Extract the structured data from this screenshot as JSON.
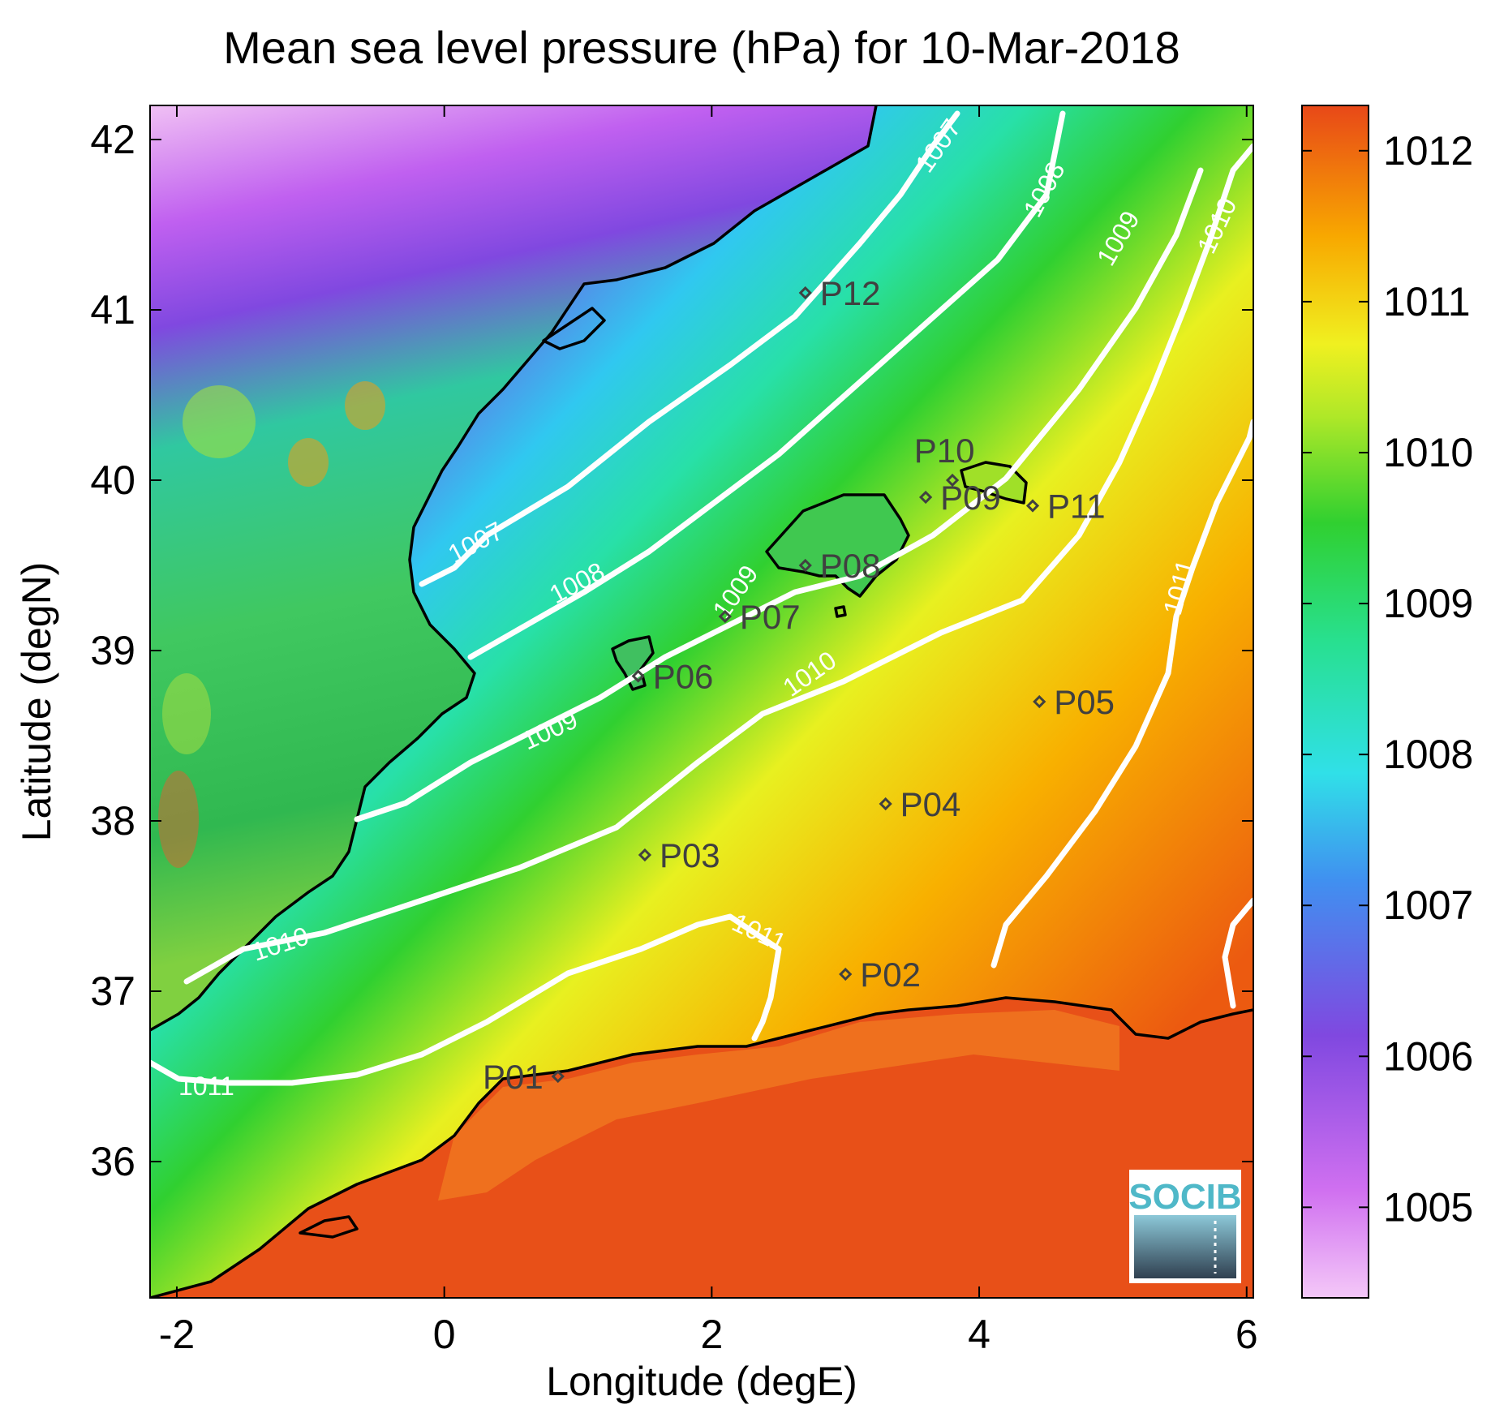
{
  "title": "Mean sea level pressure (hPa) for 10-Mar-2018",
  "xlabel": "Longitude (degE)",
  "ylabel": "Latitude (degN)",
  "logo_text": "SOCIB",
  "colors": {
    "c1004": "#f4c8f8",
    "c1005": "#d070f0",
    "c1006": "#8048e0",
    "c1007": "#30b0f0",
    "c1008": "#28e8b0",
    "c1009": "#30d030",
    "c1010": "#e8f020",
    "c1011": "#f8a800",
    "c1012": "#e84818"
  },
  "chart_data": {
    "type": "heatmap",
    "title": "Mean sea level pressure (hPa) for 10-Mar-2018",
    "xlabel": "Longitude (degE)",
    "ylabel": "Latitude (degN)",
    "xlim": [
      -2.2,
      6.05
    ],
    "ylim": [
      35.2,
      42.2
    ],
    "xticks": [
      -2,
      0,
      2,
      4,
      6
    ],
    "xtick_labels": [
      "-2",
      "0",
      "2",
      "4",
      "6"
    ],
    "yticks": [
      36,
      37,
      38,
      39,
      40,
      41,
      42
    ],
    "ytick_labels": [
      "36",
      "37",
      "38",
      "39",
      "40",
      "41",
      "42"
    ],
    "colorbar": {
      "label": "",
      "range": [
        1004.4,
        1012.3
      ],
      "ticks": [
        1005,
        1006,
        1007,
        1008,
        1009,
        1010,
        1011,
        1012
      ],
      "tick_labels": [
        "1005",
        "1006",
        "1007",
        "1008",
        "1009",
        "1010",
        "1011",
        "1012"
      ]
    },
    "contour_levels": [
      {
        "level": 1007,
        "label": "1007"
      },
      {
        "level": 1008,
        "label": "1008"
      },
      {
        "level": 1009,
        "label": "1009"
      },
      {
        "level": 1010,
        "label": "1010"
      },
      {
        "level": 1011,
        "label": "1011"
      }
    ],
    "stations": [
      {
        "name": "P01",
        "lon": 0.85,
        "lat": 36.5
      },
      {
        "name": "P02",
        "lon": 3.0,
        "lat": 37.1
      },
      {
        "name": "P03",
        "lon": 1.5,
        "lat": 37.8
      },
      {
        "name": "P04",
        "lon": 3.3,
        "lat": 38.1
      },
      {
        "name": "P05",
        "lon": 4.45,
        "lat": 38.7
      },
      {
        "name": "P06",
        "lon": 1.45,
        "lat": 38.85
      },
      {
        "name": "P07",
        "lon": 2.1,
        "lat": 39.2
      },
      {
        "name": "P08",
        "lon": 2.7,
        "lat": 39.5
      },
      {
        "name": "P09",
        "lon": 3.6,
        "lat": 39.9
      },
      {
        "name": "P10",
        "lon": 3.8,
        "lat": 40.0
      },
      {
        "name": "P11",
        "lon": 4.4,
        "lat": 39.85
      },
      {
        "name": "P12",
        "lon": 2.7,
        "lat": 41.1
      }
    ]
  }
}
